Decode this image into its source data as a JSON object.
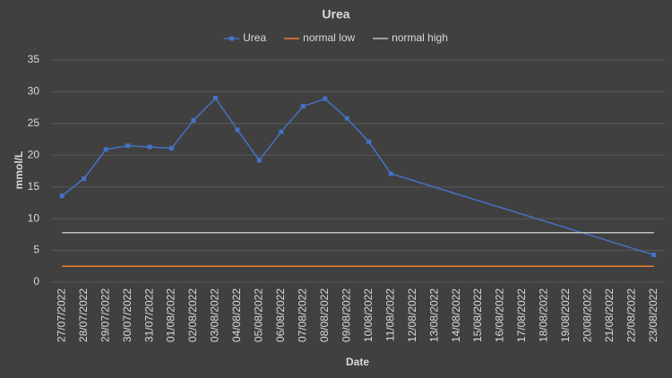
{
  "chart_data": {
    "type": "line",
    "title": "Urea",
    "x_label": "Date",
    "y_label": "mmol/L",
    "categories": [
      "27/07/2022",
      "28/07/2022",
      "29/07/2022",
      "30/07/2022",
      "31/07/2022",
      "01/08/2022",
      "02/08/2022",
      "03/08/2022",
      "04/08/2022",
      "05/08/2022",
      "06/08/2022",
      "07/08/2022",
      "08/08/2022",
      "09/08/2022",
      "10/08/2022",
      "11/08/2022",
      "12/08/2022",
      "13/08/2022",
      "14/08/2022",
      "15/08/2022",
      "16/08/2022",
      "17/08/2022",
      "18/08/2022",
      "19/08/2022",
      "20/08/2022",
      "21/08/2022",
      "22/08/2022",
      "23/08/2022"
    ],
    "series": [
      {
        "name": "Urea",
        "color": "#4472c4",
        "markers": true,
        "x": [
          "27/07/2022",
          "28/07/2022",
          "29/07/2022",
          "30/07/2022",
          "31/07/2022",
          "01/08/2022",
          "02/08/2022",
          "03/08/2022",
          "04/08/2022",
          "05/08/2022",
          "06/08/2022",
          "07/08/2022",
          "08/08/2022",
          "09/08/2022",
          "10/08/2022",
          "11/08/2022",
          "23/08/2022"
        ],
        "values": [
          13.6,
          16.3,
          20.9,
          21.5,
          21.3,
          21.1,
          25.5,
          29.0,
          24.0,
          19.2,
          23.7,
          27.7,
          28.9,
          25.8,
          22.1,
          17.1,
          4.3
        ]
      },
      {
        "name": "normal low",
        "color": "#ed7d31",
        "markers": false,
        "values": [
          2.5,
          2.5,
          2.5,
          2.5,
          2.5,
          2.5,
          2.5,
          2.5,
          2.5,
          2.5,
          2.5,
          2.5,
          2.5,
          2.5,
          2.5,
          2.5,
          2.5,
          2.5,
          2.5,
          2.5,
          2.5,
          2.5,
          2.5,
          2.5,
          2.5,
          2.5,
          2.5,
          2.5
        ]
      },
      {
        "name": "normal high",
        "color": "#bfbfbf",
        "markers": false,
        "values": [
          7.8,
          7.8,
          7.8,
          7.8,
          7.8,
          7.8,
          7.8,
          7.8,
          7.8,
          7.8,
          7.8,
          7.8,
          7.8,
          7.8,
          7.8,
          7.8,
          7.8,
          7.8,
          7.8,
          7.8,
          7.8,
          7.8,
          7.8,
          7.8,
          7.8,
          7.8,
          7.8,
          7.8
        ]
      }
    ],
    "ylim": [
      0,
      35
    ],
    "yticks": [
      0,
      5,
      10,
      15,
      20,
      25,
      30,
      35
    ],
    "grid": true,
    "legend": "top"
  }
}
